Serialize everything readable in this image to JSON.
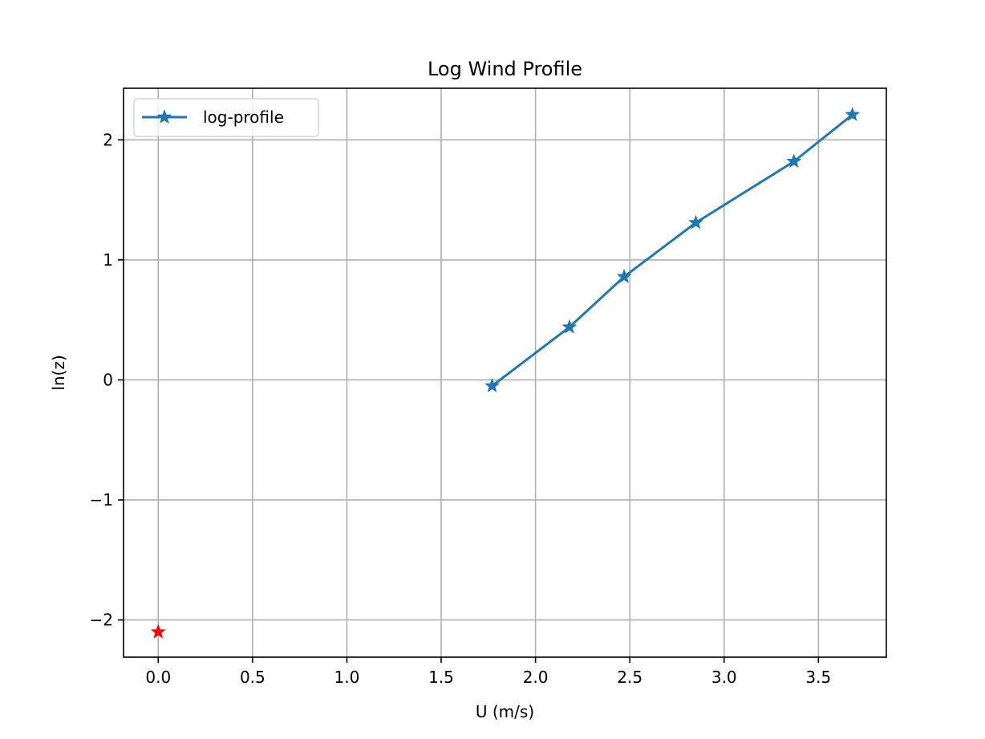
{
  "chart_data": {
    "type": "line",
    "title": "Log Wind Profile",
    "xlabel": "U (m/s)",
    "ylabel": "ln(z)",
    "xlim": [
      -0.184,
      3.86
    ],
    "ylim": [
      -2.31,
      2.43
    ],
    "xticks": [
      0.0,
      0.5,
      1.0,
      1.5,
      2.0,
      2.5,
      3.0,
      3.5
    ],
    "xtick_labels": [
      "0.0",
      "0.5",
      "1.0",
      "1.5",
      "2.0",
      "2.5",
      "3.0",
      "3.5"
    ],
    "yticks": [
      -2,
      -1,
      0,
      1,
      2
    ],
    "ytick_labels": [
      "−2",
      "−1",
      "0",
      "1",
      "2"
    ],
    "grid": true,
    "legend_position": "upper-left",
    "series": [
      {
        "name": "log-profile",
        "color": "#1f77b4",
        "marker": "star",
        "line": true,
        "x": [
          1.77,
          2.18,
          2.47,
          2.85,
          3.37,
          3.68
        ],
        "y": [
          -0.05,
          0.44,
          0.86,
          1.31,
          1.82,
          2.21
        ]
      },
      {
        "color": "#ff0000",
        "marker": "star",
        "line": false,
        "x": [
          0.0
        ],
        "y": [
          -2.1
        ]
      }
    ]
  }
}
